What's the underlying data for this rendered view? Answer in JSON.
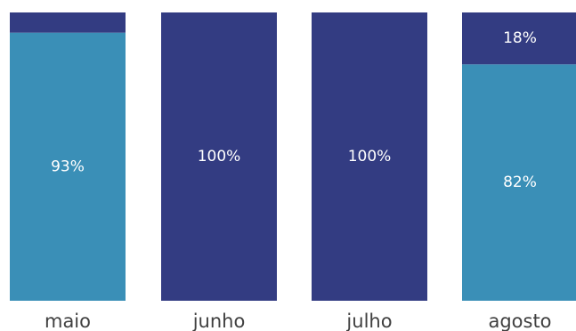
{
  "colors": {
    "series_1": "#3a8fb7",
    "series_2": "#333c82",
    "label_on_bar": "#ffffff",
    "category_label": "#404040"
  },
  "chart_data": {
    "type": "bar",
    "stacked": "100%",
    "title": "",
    "xlabel": "",
    "ylabel": "",
    "ylim": [
      0,
      100
    ],
    "grid": false,
    "legend": "none",
    "categories": [
      "maio",
      "junho",
      "julho",
      "agosto"
    ],
    "series": [
      {
        "values": [
          93,
          0,
          0,
          82
        ],
        "labels": [
          "93%",
          "",
          "",
          "82%"
        ],
        "color": "#3a8fb7"
      },
      {
        "values": [
          7,
          100,
          100,
          18
        ],
        "labels": [
          "",
          "100%",
          "100%",
          "18%"
        ],
        "color": "#333c82"
      }
    ]
  }
}
